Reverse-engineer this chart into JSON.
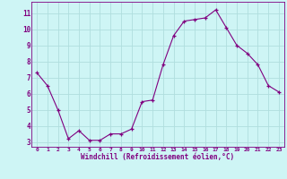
{
  "x": [
    0,
    1,
    2,
    3,
    4,
    5,
    6,
    7,
    8,
    9,
    10,
    11,
    12,
    13,
    14,
    15,
    16,
    17,
    18,
    19,
    20,
    21,
    22,
    23
  ],
  "y": [
    7.3,
    6.5,
    5.0,
    3.2,
    3.7,
    3.1,
    3.1,
    3.5,
    3.5,
    3.8,
    5.5,
    5.6,
    7.8,
    9.6,
    10.5,
    10.6,
    10.7,
    11.2,
    10.1,
    9.0,
    8.5,
    7.8,
    6.5,
    6.1
  ],
  "line_color": "#800080",
  "marker": "+",
  "marker_color": "#800080",
  "bg_color": "#cef5f5",
  "grid_color": "#b0dede",
  "xlabel": "Windchill (Refroidissement éolien,°C)",
  "xlabel_color": "#800080",
  "ylabel_ticks": [
    3,
    4,
    5,
    6,
    7,
    8,
    9,
    10,
    11
  ],
  "xtick_labels": [
    "0",
    "1",
    "2",
    "3",
    "4",
    "5",
    "6",
    "7",
    "8",
    "9",
    "10",
    "11",
    "12",
    "13",
    "14",
    "15",
    "16",
    "17",
    "18",
    "19",
    "20",
    "21",
    "22",
    "23"
  ],
  "ylim": [
    2.7,
    11.7
  ],
  "xlim": [
    -0.5,
    23.5
  ]
}
